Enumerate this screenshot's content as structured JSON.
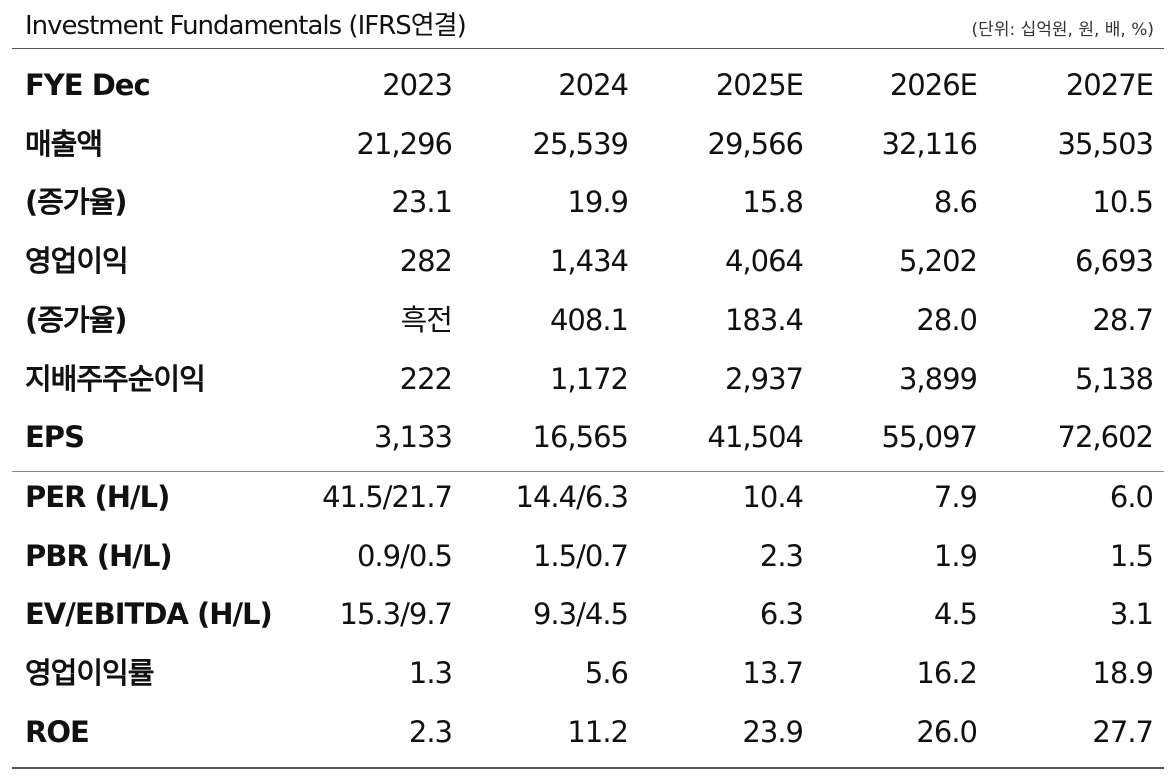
{
  "header": {
    "title": "Investment Fundamentals (IFRS연결)",
    "unit": "(단위: 십억원, 원, 배, %)"
  },
  "table": {
    "columns": [
      "FYE Dec",
      "2023",
      "2024",
      "2025E",
      "2026E",
      "2027E"
    ],
    "sections": [
      [
        [
          "매출액",
          "21,296",
          "25,539",
          "29,566",
          "32,116",
          "35,503"
        ],
        [
          "(증가율)",
          "23.1",
          "19.9",
          "15.8",
          "8.6",
          "10.5"
        ],
        [
          "영업이익",
          "282",
          "1,434",
          "4,064",
          "5,202",
          "6,693"
        ],
        [
          "(증가율)",
          "흑전",
          "408.1",
          "183.4",
          "28.0",
          "28.7"
        ],
        [
          "지배주주순이익",
          "222",
          "1,172",
          "2,937",
          "3,899",
          "5,138"
        ],
        [
          "EPS",
          "3,133",
          "16,565",
          "41,504",
          "55,097",
          "72,602"
        ]
      ],
      [
        [
          "PER (H/L)",
          "41.5/21.7",
          "14.4/6.3",
          "10.4",
          "7.9",
          "6.0"
        ],
        [
          "PBR (H/L)",
          "0.9/0.5",
          "1.5/0.7",
          "2.3",
          "1.9",
          "1.5"
        ],
        [
          "EV/EBITDA (H/L)",
          "15.3/9.7",
          "9.3/4.5",
          "6.3",
          "4.5",
          "3.1"
        ],
        [
          "영업이익률",
          "1.3",
          "5.6",
          "13.7",
          "16.2",
          "18.9"
        ],
        [
          "ROE",
          "2.3",
          "11.2",
          "23.9",
          "26.0",
          "27.7"
        ]
      ]
    ]
  }
}
